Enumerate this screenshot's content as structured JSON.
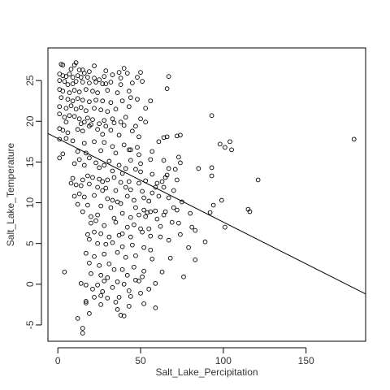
{
  "chart_data": {
    "type": "scatter",
    "xlabel": "Salt_Lake_Percipitation",
    "ylabel": "Salt_Lake_Temperature",
    "xlim": [
      -6,
      186
    ],
    "ylim": [
      -7,
      29
    ],
    "xticks": [
      0,
      50,
      100,
      150
    ],
    "yticks": [
      -5,
      0,
      5,
      10,
      15,
      20,
      25
    ],
    "xtick_labels": [
      "0",
      "50",
      "100",
      "150"
    ],
    "ytick_labels": [
      "-5",
      "0",
      "5",
      "10",
      "15",
      "20",
      "25"
    ],
    "grid": false,
    "point_style": "open-circle",
    "colors": {
      "points": "#000000",
      "line": "#000000",
      "axes": "#000000"
    },
    "regression_line": {
      "x": [
        -6,
        186
      ],
      "y": [
        18.5,
        -1.2
      ]
    },
    "points": [
      [
        2,
        27
      ],
      [
        3,
        26.9
      ],
      [
        8,
        26.4
      ],
      [
        10,
        26.9
      ],
      [
        11,
        27.2
      ],
      [
        13,
        26.3
      ],
      [
        15,
        26.3
      ],
      [
        19,
        26.1
      ],
      [
        22,
        26.8
      ],
      [
        29,
        26.2
      ],
      [
        37,
        26
      ],
      [
        40,
        26.5
      ],
      [
        50,
        26
      ],
      [
        1,
        25.8
      ],
      [
        3,
        25.6
      ],
      [
        5,
        25.5
      ],
      [
        7,
        25.8
      ],
      [
        9,
        25.4
      ],
      [
        12,
        25.6
      ],
      [
        14,
        25.4
      ],
      [
        16,
        25.9
      ],
      [
        18,
        25.4
      ],
      [
        22,
        25.3
      ],
      [
        25,
        25.1
      ],
      [
        28,
        25.5
      ],
      [
        33,
        25.7
      ],
      [
        38,
        25.3
      ],
      [
        42,
        25.9
      ],
      [
        48,
        25.4
      ],
      [
        67,
        25.5
      ],
      [
        1,
        25
      ],
      [
        4,
        24.9
      ],
      [
        6,
        24.5
      ],
      [
        9,
        24.6
      ],
      [
        11,
        24.9
      ],
      [
        15,
        24.8
      ],
      [
        19,
        24.7
      ],
      [
        23,
        24.8
      ],
      [
        27,
        24.6
      ],
      [
        29,
        24.6
      ],
      [
        32,
        24.8
      ],
      [
        38,
        24.5
      ],
      [
        45,
        24.7
      ],
      [
        51,
        24.9
      ],
      [
        66,
        24
      ],
      [
        1,
        23.9
      ],
      [
        3,
        23.7
      ],
      [
        7,
        23.5
      ],
      [
        10,
        23.8
      ],
      [
        13,
        23.6
      ],
      [
        17,
        23.9
      ],
      [
        21,
        23.7
      ],
      [
        24,
        23.5
      ],
      [
        30,
        23.8
      ],
      [
        36,
        23.5
      ],
      [
        43,
        23.7
      ],
      [
        2,
        22.9
      ],
      [
        6,
        22.7
      ],
      [
        9,
        22.5
      ],
      [
        12,
        22.8
      ],
      [
        15,
        22.6
      ],
      [
        19,
        22.4
      ],
      [
        23,
        22.6
      ],
      [
        27,
        22.5
      ],
      [
        32,
        22.3
      ],
      [
        39,
        22.5
      ],
      [
        44,
        22.9
      ],
      [
        48,
        22.7
      ],
      [
        56,
        22.5
      ],
      [
        1,
        21.8
      ],
      [
        5,
        21.6
      ],
      [
        8,
        21.9
      ],
      [
        11,
        21.5
      ],
      [
        14,
        21.7
      ],
      [
        17,
        21.3
      ],
      [
        22,
        21.6
      ],
      [
        26,
        21.4
      ],
      [
        30,
        21.2
      ],
      [
        35,
        21.5
      ],
      [
        43,
        21.8
      ],
      [
        53,
        21.6
      ],
      [
        93,
        20.7
      ],
      [
        1,
        20.9
      ],
      [
        4,
        20.5
      ],
      [
        7,
        20.7
      ],
      [
        10,
        20.6
      ],
      [
        13,
        20.3
      ],
      [
        18,
        20.4
      ],
      [
        21,
        20.2
      ],
      [
        28,
        20.1
      ],
      [
        33,
        20.3
      ],
      [
        41,
        20.5
      ],
      [
        50,
        20.3
      ],
      [
        5,
        19.9
      ],
      [
        14,
        19.7
      ],
      [
        16,
        19.9
      ],
      [
        19,
        19.4
      ],
      [
        20,
        19.6
      ],
      [
        25,
        19.7
      ],
      [
        29,
        19.4
      ],
      [
        34,
        19.8
      ],
      [
        38,
        19.9
      ],
      [
        40,
        19.5
      ],
      [
        47,
        19.4
      ],
      [
        53,
        19.9
      ],
      [
        1,
        19.1
      ],
      [
        3,
        18.9
      ],
      [
        6,
        18.6
      ],
      [
        12,
        19
      ],
      [
        15,
        18.8
      ],
      [
        24,
        19
      ],
      [
        27,
        18.4
      ],
      [
        32,
        18.9
      ],
      [
        37,
        18.3
      ],
      [
        45,
        18.8
      ],
      [
        49,
        18.1
      ],
      [
        61,
        17.5
      ],
      [
        66,
        18.1
      ],
      [
        72,
        18.2
      ],
      [
        74,
        18.3
      ],
      [
        98,
        17.2
      ],
      [
        101,
        16.8
      ],
      [
        104,
        17.5
      ],
      [
        105,
        16.5
      ],
      [
        179,
        17.8
      ],
      [
        1,
        17.8
      ],
      [
        5,
        17.9
      ],
      [
        9,
        17.6
      ],
      [
        16,
        17.3
      ],
      [
        22,
        17.5
      ],
      [
        28,
        17.4
      ],
      [
        33,
        16.9
      ],
      [
        40,
        17.1
      ],
      [
        44,
        16.5
      ],
      [
        48,
        16.8
      ],
      [
        64,
        18
      ],
      [
        3,
        16
      ],
      [
        12,
        16.3
      ],
      [
        17,
        16.1
      ],
      [
        26,
        16.4
      ],
      [
        35,
        16.1
      ],
      [
        43,
        16.5
      ],
      [
        49,
        15.9
      ],
      [
        57,
        16.3
      ],
      [
        1,
        15.5
      ],
      [
        13,
        15.3
      ],
      [
        19,
        15.5
      ],
      [
        23,
        14.9
      ],
      [
        31,
        15.1
      ],
      [
        37,
        14.6
      ],
      [
        44,
        15.2
      ],
      [
        50,
        14.8
      ],
      [
        56,
        15.3
      ],
      [
        64,
        15.2
      ],
      [
        73,
        15.6
      ],
      [
        74,
        14.9
      ],
      [
        93,
        14.3
      ],
      [
        10,
        14.8
      ],
      [
        16,
        14.6
      ],
      [
        25,
        14.3
      ],
      [
        28,
        14.6
      ],
      [
        33,
        13.9
      ],
      [
        39,
        13.6
      ],
      [
        41,
        14.2
      ],
      [
        47,
        14.1
      ],
      [
        50,
        13.8
      ],
      [
        57,
        13.5
      ],
      [
        66,
        13.4
      ],
      [
        67,
        14.2
      ],
      [
        71,
        14.1
      ],
      [
        85,
        14.2
      ],
      [
        93,
        13.3
      ],
      [
        9,
        13
      ],
      [
        15,
        12.8
      ],
      [
        18,
        13.3
      ],
      [
        21,
        13.1
      ],
      [
        25,
        12.9
      ],
      [
        27,
        12.6
      ],
      [
        30,
        12.8
      ],
      [
        34,
        13.1
      ],
      [
        38,
        12.5
      ],
      [
        43,
        12.6
      ],
      [
        49,
        12.4
      ],
      [
        53,
        12.7
      ],
      [
        60,
        12.4
      ],
      [
        63,
        12.6
      ],
      [
        65,
        13.1
      ],
      [
        72,
        12.8
      ],
      [
        121,
        12.8
      ],
      [
        8,
        12.4
      ],
      [
        11,
        12.2
      ],
      [
        14,
        12.1
      ],
      [
        19,
        12.3
      ],
      [
        24,
        11.9
      ],
      [
        27,
        11.5
      ],
      [
        29,
        11.8
      ],
      [
        35,
        11.5
      ],
      [
        41,
        11.9
      ],
      [
        44,
        11.6
      ],
      [
        51,
        11.4
      ],
      [
        57,
        11.2
      ],
      [
        59,
        11.9
      ],
      [
        64,
        11.9
      ],
      [
        70,
        11.5
      ],
      [
        10,
        10.8
      ],
      [
        13,
        11.1
      ],
      [
        16,
        10.7
      ],
      [
        22,
        10.9
      ],
      [
        30,
        10.5
      ],
      [
        33,
        10.3
      ],
      [
        36,
        10.1
      ],
      [
        42,
        10.8
      ],
      [
        46,
        10.3
      ],
      [
        52,
        10.6
      ],
      [
        55,
        10.2
      ],
      [
        61,
        10.8
      ],
      [
        67,
        10.6
      ],
      [
        75,
        10.1
      ],
      [
        12,
        9.8
      ],
      [
        18,
        9.7
      ],
      [
        26,
        9.6
      ],
      [
        32,
        9.4
      ],
      [
        38,
        9.9
      ],
      [
        47,
        9.4
      ],
      [
        52,
        9.1
      ],
      [
        54,
        8.8
      ],
      [
        59,
        9
      ],
      [
        65,
        8.9
      ],
      [
        70,
        9.4
      ],
      [
        72,
        9.1
      ],
      [
        80,
        8.7
      ],
      [
        94,
        9.7
      ],
      [
        99,
        10.3
      ],
      [
        115,
        9.2
      ],
      [
        116,
        8.9
      ],
      [
        15,
        8.9
      ],
      [
        20,
        8.3
      ],
      [
        24,
        8.5
      ],
      [
        34,
        8.1
      ],
      [
        39,
        8.7
      ],
      [
        44,
        8.2
      ],
      [
        49,
        8.5
      ],
      [
        53,
        8.3
      ],
      [
        56,
        8.9
      ],
      [
        60,
        8
      ],
      [
        64,
        8.5
      ],
      [
        73,
        7.5
      ],
      [
        92,
        8.8
      ],
      [
        101,
        7
      ],
      [
        20,
        7.5
      ],
      [
        23,
        7.8
      ],
      [
        28,
        7.2
      ],
      [
        35,
        7.6
      ],
      [
        42,
        7
      ],
      [
        46,
        7.3
      ],
      [
        50,
        6.8
      ],
      [
        55,
        6.8
      ],
      [
        62,
        7.1
      ],
      [
        69,
        7.6
      ],
      [
        81,
        7
      ],
      [
        18,
        6.1
      ],
      [
        22,
        6.4
      ],
      [
        26,
        6.2
      ],
      [
        31,
        5.8
      ],
      [
        37,
        6
      ],
      [
        39,
        6.2
      ],
      [
        44,
        5.8
      ],
      [
        51,
        6.4
      ],
      [
        56,
        5.9
      ],
      [
        62,
        5.8
      ],
      [
        74,
        6.1
      ],
      [
        83,
        6.6
      ],
      [
        19,
        5.5
      ],
      [
        24,
        5
      ],
      [
        29,
        4.9
      ],
      [
        33,
        5.1
      ],
      [
        39,
        4.6
      ],
      [
        45,
        4.8
      ],
      [
        52,
        4.5
      ],
      [
        56,
        4.2
      ],
      [
        67,
        5.4
      ],
      [
        79,
        4.5
      ],
      [
        89,
        5.2
      ],
      [
        17,
        3.8
      ],
      [
        22,
        3.4
      ],
      [
        28,
        3.7
      ],
      [
        36,
        3.9
      ],
      [
        41,
        3.3
      ],
      [
        47,
        3.5
      ],
      [
        57,
        3.1
      ],
      [
        68,
        3.2
      ],
      [
        83,
        3
      ],
      [
        19,
        2.6
      ],
      [
        25,
        2.3
      ],
      [
        31,
        2.5
      ],
      [
        34,
        1.8
      ],
      [
        39,
        1.8
      ],
      [
        46,
        2.1
      ],
      [
        52,
        1.6
      ],
      [
        63,
        1.5
      ],
      [
        4,
        1.5
      ],
      [
        20,
        1.3
      ],
      [
        26,
        1.1
      ],
      [
        30,
        0.8
      ],
      [
        42,
        1.1
      ],
      [
        47,
        0.5
      ],
      [
        51,
        0.9
      ],
      [
        76,
        0.9
      ],
      [
        14,
        0.1
      ],
      [
        17,
        -0.1
      ],
      [
        24,
        -0.1
      ],
      [
        28,
        0.4
      ],
      [
        36,
        0.3
      ],
      [
        40,
        0
      ],
      [
        49,
        0.4
      ],
      [
        59,
        0.1
      ],
      [
        21,
        -0.6
      ],
      [
        27,
        -0.9
      ],
      [
        33,
        -0.4
      ],
      [
        43,
        -0.8
      ],
      [
        55,
        -0.6
      ],
      [
        17,
        -2.1
      ],
      [
        22,
        -1.6
      ],
      [
        26,
        -1.4
      ],
      [
        30,
        -1.7
      ],
      [
        37,
        -1.6
      ],
      [
        44,
        -1.5
      ],
      [
        50,
        -1.1
      ],
      [
        17,
        -2.3
      ],
      [
        26,
        -2.5
      ],
      [
        35,
        -2.2
      ],
      [
        43,
        -2.7
      ],
      [
        52,
        -2.4
      ],
      [
        59,
        -2.9
      ],
      [
        19,
        -3.6
      ],
      [
        36,
        -3.1
      ],
      [
        38,
        -3.8
      ],
      [
        40,
        -3.9
      ],
      [
        12,
        -4.2
      ],
      [
        15,
        -5.4
      ],
      [
        15,
        -6
      ]
    ]
  }
}
